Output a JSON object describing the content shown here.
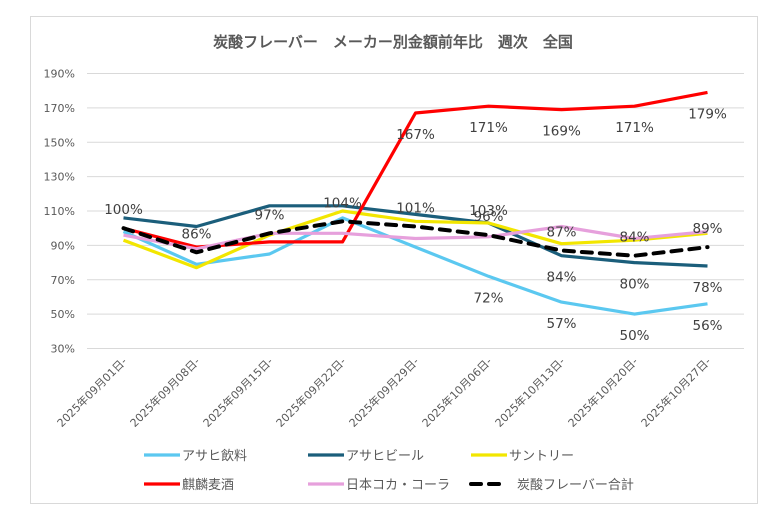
{
  "chart_data": {
    "type": "line",
    "title": "炭酸フレーバー　メーカー別金額前年比　週次　全国",
    "xlabel": "",
    "ylabel": "",
    "ylim": [
      30,
      190
    ],
    "ytick_step": 20,
    "yticks": [
      "190%",
      "170%",
      "150%",
      "130%",
      "110%",
      "90%",
      "70%",
      "50%",
      "30%"
    ],
    "grid": true,
    "legend_position": "bottom",
    "categories": [
      "2025年09月01日-",
      "2025年09月08日-",
      "2025年09月15日-",
      "2025年09月22日-",
      "2025年09月29日-",
      "2025年10月06日-",
      "2025年10月13日-",
      "2025年10月20日-",
      "2025年10月27日-"
    ],
    "series": [
      {
        "name": "アサヒ飲料",
        "color": "#5BC8F0",
        "dashed": false,
        "values": [
          98,
          79,
          85,
          106,
          89,
          72,
          57,
          50,
          56
        ],
        "labels": [
          null,
          null,
          null,
          null,
          null,
          "72%",
          "57%",
          "50%",
          "56%"
        ]
      },
      {
        "name": "アサヒビール",
        "color": "#1B5E7B",
        "dashed": false,
        "values": [
          106,
          101,
          113,
          113,
          108,
          103,
          84,
          80,
          78
        ],
        "labels": [
          null,
          null,
          null,
          null,
          null,
          "103%",
          "84%",
          "80%",
          "78%"
        ]
      },
      {
        "name": "サントリー",
        "color": "#F2E600",
        "dashed": false,
        "values": [
          93,
          77,
          96,
          110,
          104,
          103,
          91,
          93,
          97
        ],
        "labels": [
          null,
          null,
          null,
          null,
          null,
          null,
          null,
          null,
          null
        ]
      },
      {
        "name": "麒麟麦酒",
        "color": "#FF0000",
        "dashed": false,
        "values": [
          100,
          89,
          92,
          92,
          167,
          171,
          169,
          171,
          179
        ],
        "labels": [
          null,
          null,
          null,
          null,
          "167%",
          "171%",
          "169%",
          "171%",
          "179%"
        ]
      },
      {
        "name": "日本コカ・コーラ",
        "color": "#E6A0DC",
        "dashed": false,
        "values": [
          96,
          88,
          97,
          97,
          94,
          95,
          101,
          94,
          98
        ],
        "labels": [
          null,
          null,
          null,
          null,
          null,
          null,
          null,
          null,
          null
        ]
      },
      {
        "name": "炭酸フレーバー合計",
        "color": "#000000",
        "dashed": true,
        "values": [
          100,
          86,
          97,
          104,
          101,
          96,
          87,
          84,
          89
        ],
        "labels": [
          "100%",
          "86%",
          "97%",
          "104%",
          "101%",
          "96%",
          "87%",
          "84%",
          "89%"
        ]
      }
    ]
  }
}
